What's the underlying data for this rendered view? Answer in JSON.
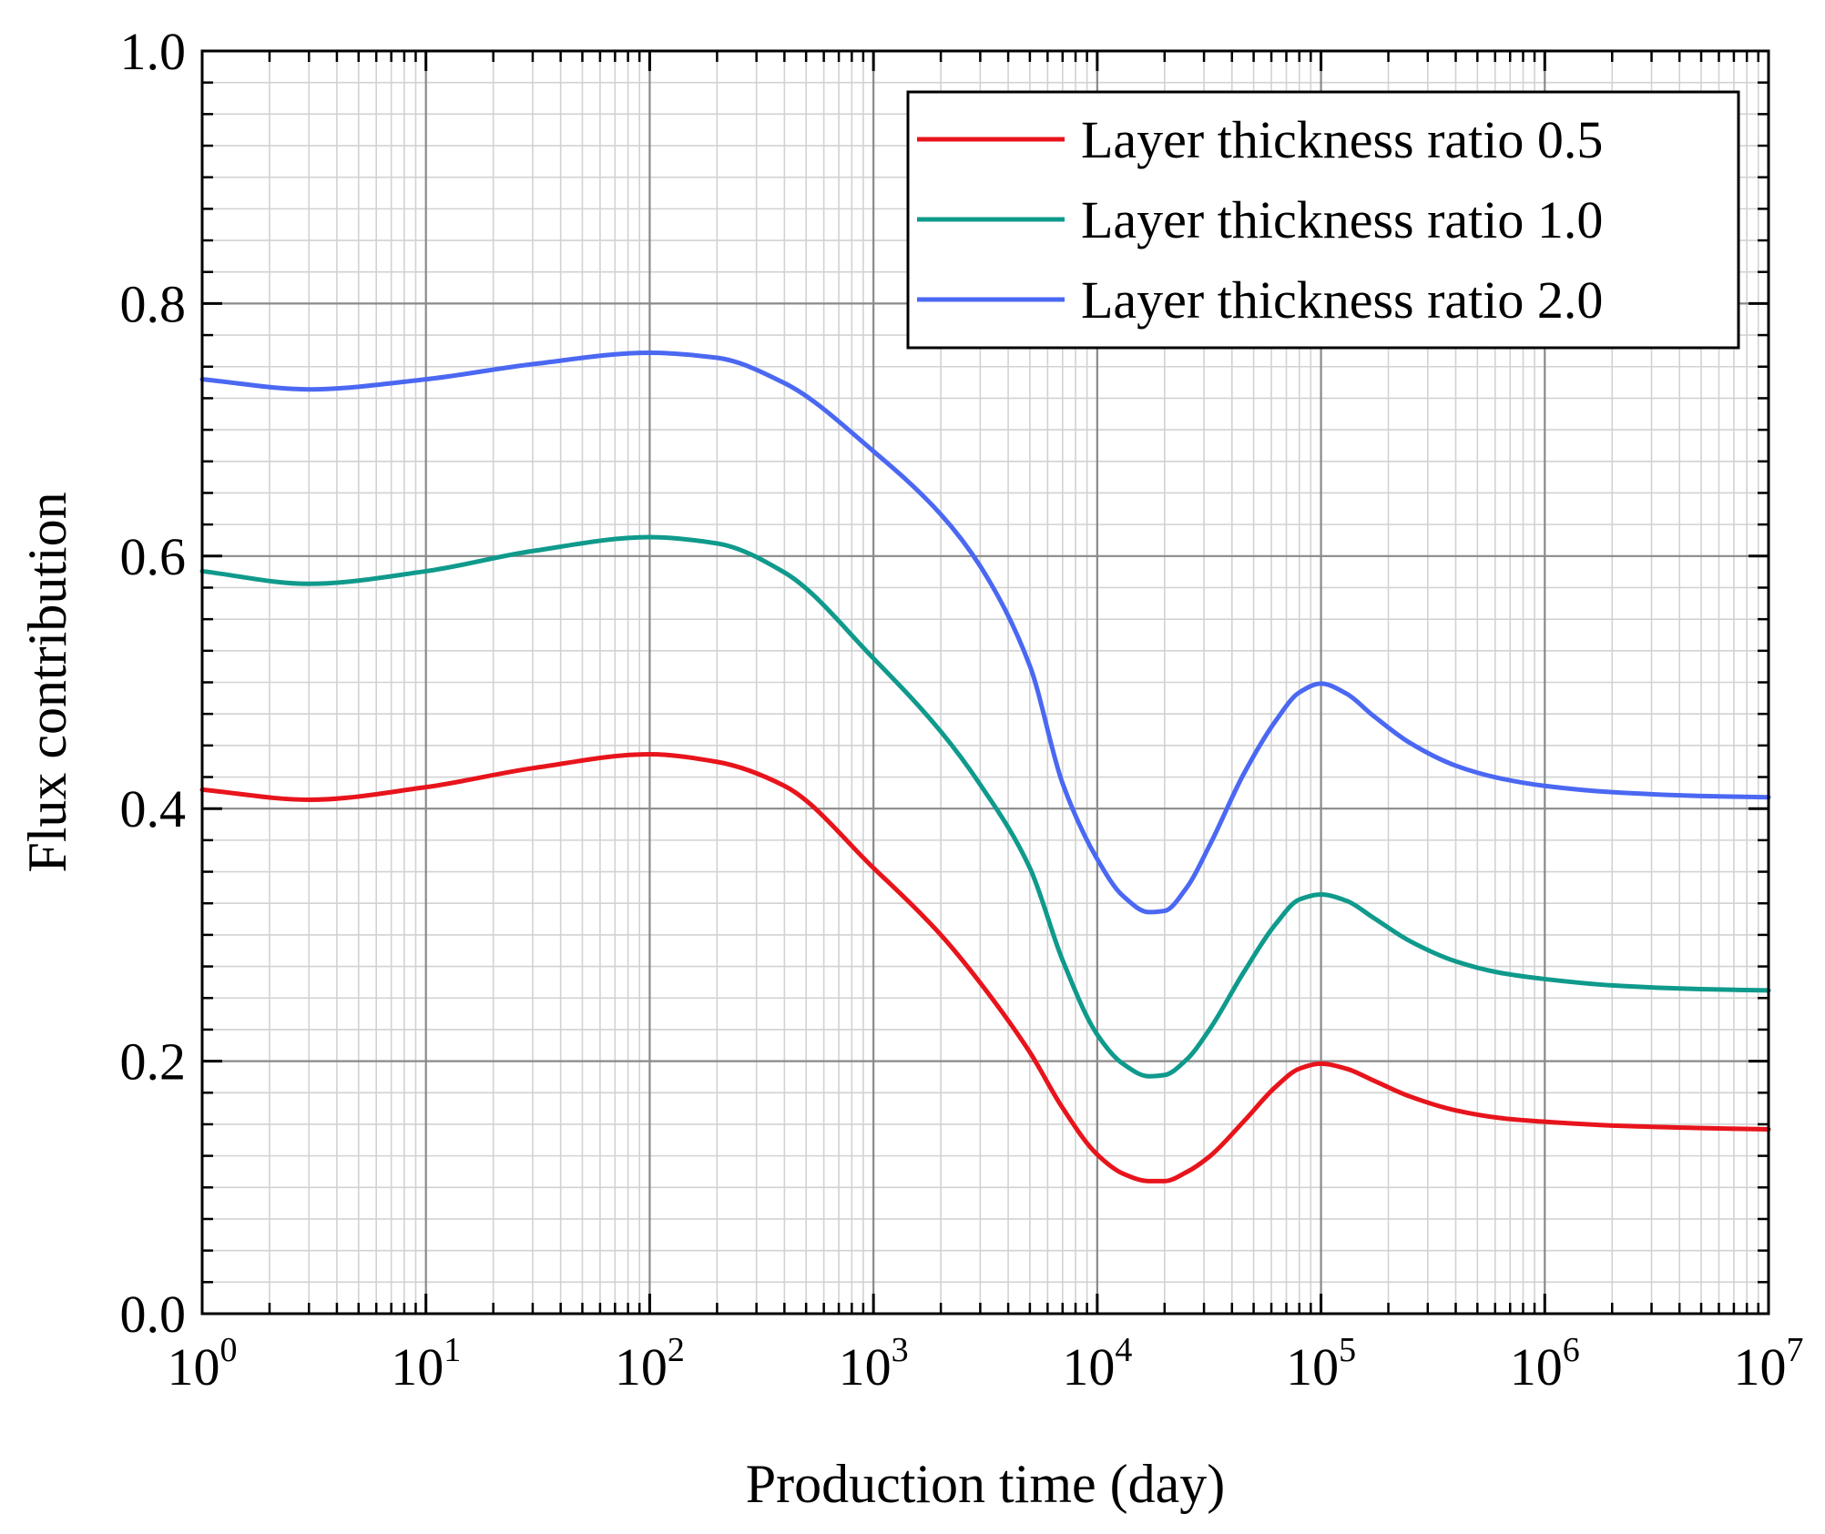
{
  "chart_data": {
    "type": "line",
    "xlabel": "Production time (day)",
    "ylabel": "Flux contribution",
    "x_scale": "log",
    "xlim": [
      1,
      10000000
    ],
    "ylim": [
      0.0,
      1.0
    ],
    "x_ticks": [
      {
        "base": "10",
        "exp": "0"
      },
      {
        "base": "10",
        "exp": "1"
      },
      {
        "base": "10",
        "exp": "2"
      },
      {
        "base": "10",
        "exp": "3"
      },
      {
        "base": "10",
        "exp": "4"
      },
      {
        "base": "10",
        "exp": "5"
      },
      {
        "base": "10",
        "exp": "6"
      },
      {
        "base": "10",
        "exp": "7"
      }
    ],
    "y_ticks": [
      "0.0",
      "0.2",
      "0.4",
      "0.6",
      "0.8",
      "1.0"
    ],
    "grid": true,
    "legend_position": "top-right",
    "x": [
      1,
      3,
      10,
      30,
      100,
      200,
      400,
      1000,
      2000,
      3000,
      5000,
      7000,
      10000,
      13000,
      17000,
      20000,
      25000,
      32000,
      45000,
      63000,
      80000,
      100000,
      130000,
      170000,
      250000,
      400000,
      630000,
      1000000,
      2000000,
      5000000,
      10000000
    ],
    "series": [
      {
        "name": "Layer thickness ratio 0.5",
        "color": "#e8141c",
        "values": [
          0.415,
          0.407,
          0.417,
          0.432,
          0.443,
          0.437,
          0.418,
          0.353,
          0.3,
          0.262,
          0.207,
          0.163,
          0.126,
          0.111,
          0.105,
          0.105,
          0.112,
          0.125,
          0.152,
          0.18,
          0.194,
          0.198,
          0.194,
          0.185,
          0.172,
          0.161,
          0.155,
          0.152,
          0.149,
          0.147,
          0.146
        ]
      },
      {
        "name": "Layer thickness ratio 1.0",
        "color": "#0f9a8c",
        "values": [
          0.588,
          0.578,
          0.588,
          0.604,
          0.615,
          0.61,
          0.587,
          0.519,
          0.461,
          0.419,
          0.353,
          0.28,
          0.221,
          0.198,
          0.188,
          0.189,
          0.201,
          0.226,
          0.27,
          0.309,
          0.328,
          0.332,
          0.327,
          0.314,
          0.295,
          0.279,
          0.27,
          0.265,
          0.26,
          0.257,
          0.256
        ]
      },
      {
        "name": "Layer thickness ratio 2.0",
        "color": "#4b68f2",
        "values": [
          0.74,
          0.732,
          0.74,
          0.752,
          0.761,
          0.757,
          0.737,
          0.683,
          0.633,
          0.592,
          0.513,
          0.42,
          0.36,
          0.331,
          0.318,
          0.319,
          0.337,
          0.372,
          0.427,
          0.47,
          0.492,
          0.499,
          0.491,
          0.474,
          0.452,
          0.434,
          0.424,
          0.418,
          0.413,
          0.41,
          0.409
        ]
      }
    ]
  }
}
